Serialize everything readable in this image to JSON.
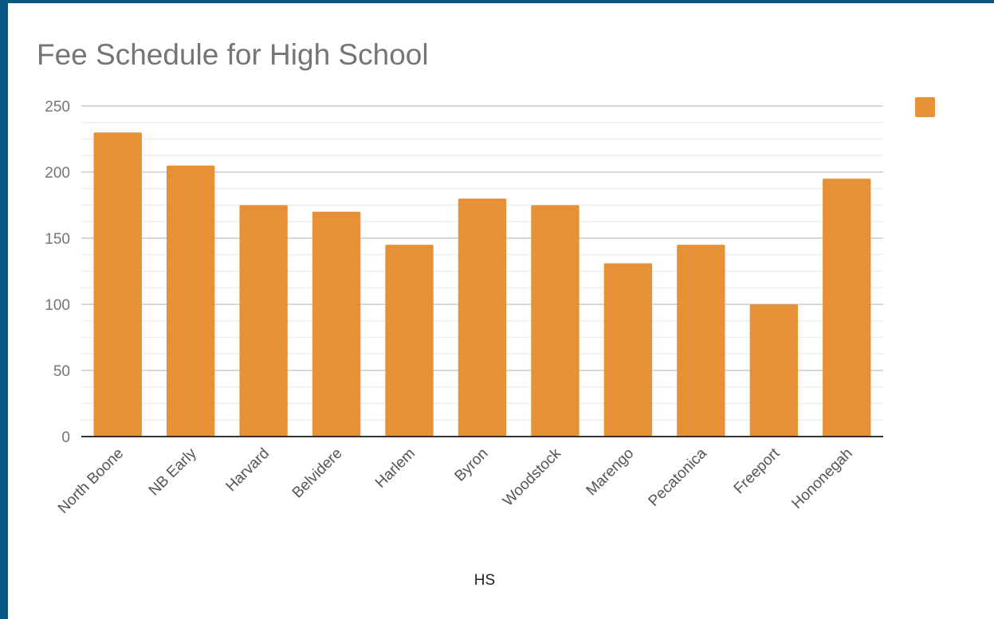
{
  "chart_data": {
    "type": "bar",
    "title": "Fee Schedule for High School",
    "xlabel": "HS",
    "ylabel": "",
    "categories": [
      "North Boone",
      "NB Early",
      "Harvard",
      "Belvidere",
      "Harlem",
      "Byron",
      "Woodstock",
      "Marengo",
      "Pecatonica",
      "Freeport",
      "Hononegah"
    ],
    "series": [
      {
        "values": [
          230,
          205,
          175,
          170,
          145,
          180,
          175,
          131,
          145,
          100,
          195
        ],
        "color": "#e69138"
      }
    ],
    "ylim": [
      0,
      250
    ],
    "yticks": [
      0,
      50,
      100,
      150,
      200,
      250
    ],
    "grid": true,
    "legend": "top-right"
  }
}
